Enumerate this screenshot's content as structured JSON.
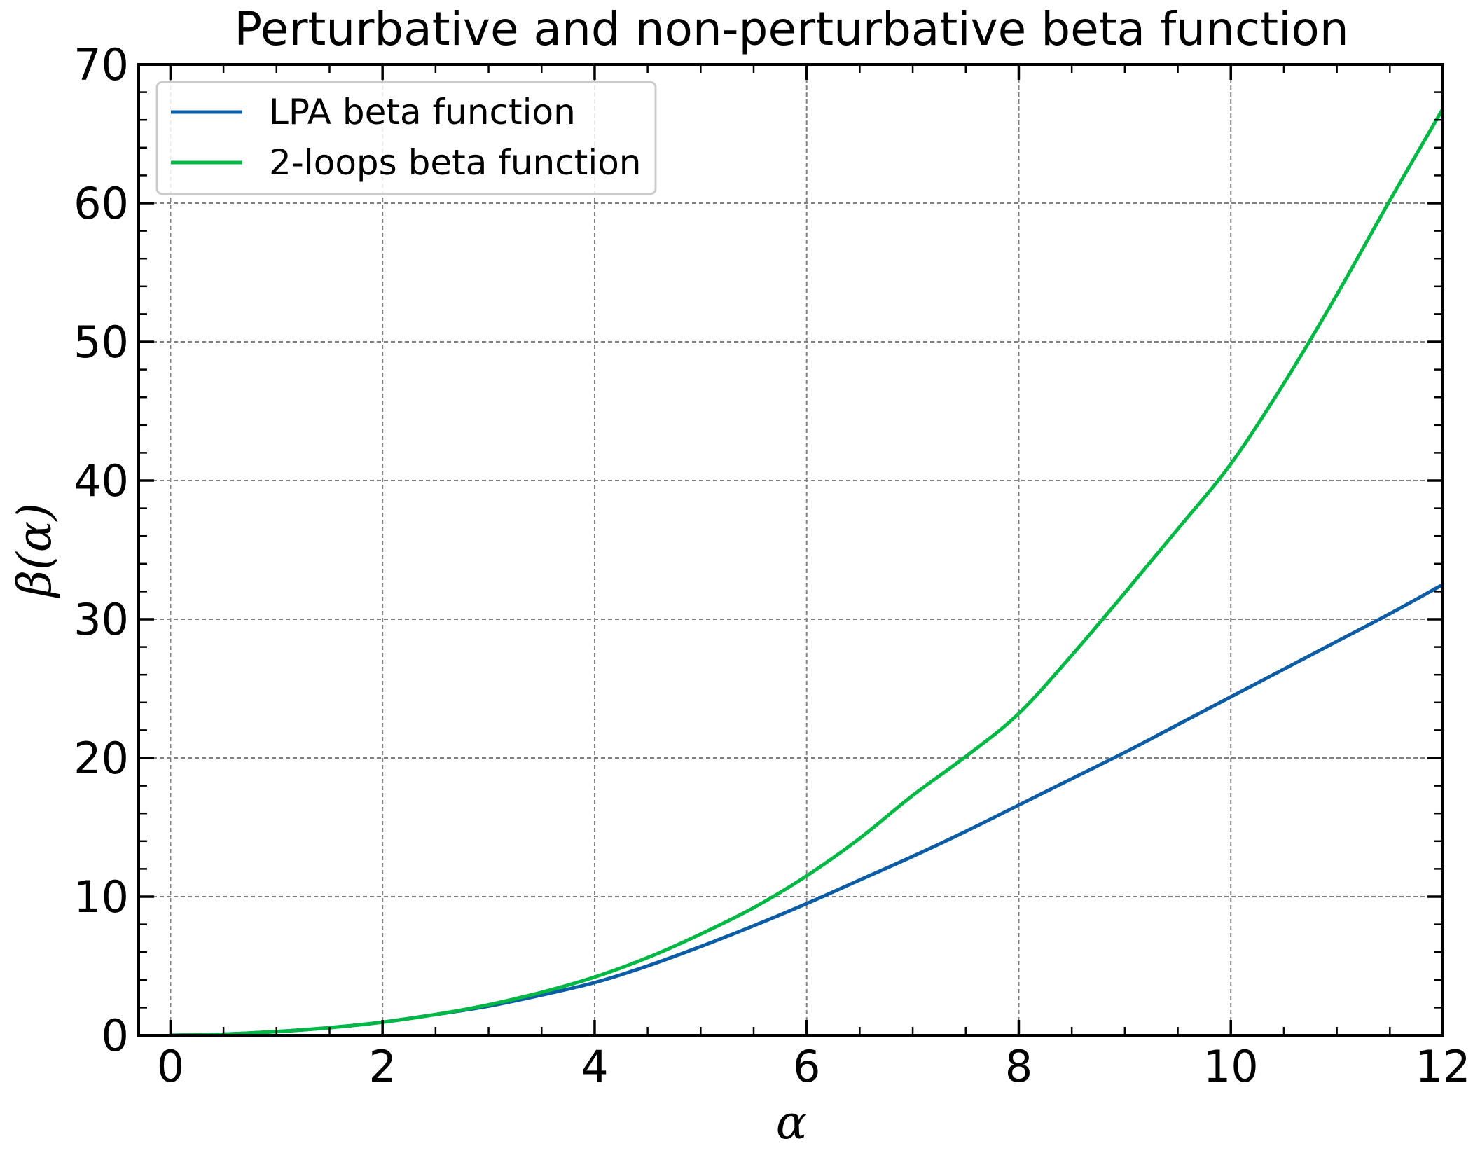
{
  "chart_data": {
    "type": "line",
    "title": "Perturbative and non-perturbative beta function",
    "xlabel": "α",
    "ylabel": "β(α)",
    "xlim": [
      -0.3,
      12
    ],
    "ylim": [
      0,
      70
    ],
    "x_ticks": [
      0,
      2,
      4,
      6,
      8,
      10,
      12
    ],
    "y_ticks": [
      0,
      10,
      20,
      30,
      40,
      50,
      60,
      70
    ],
    "grid": true,
    "legend_position": "top-left",
    "series": [
      {
        "name": "LPA beta function",
        "color": "#0c5da5",
        "x": [
          0,
          0.5,
          1,
          1.5,
          2,
          2.5,
          3,
          3.5,
          4,
          4.5,
          5,
          5.5,
          6,
          6.5,
          7,
          7.5,
          8,
          8.5,
          9,
          9.5,
          10,
          10.5,
          11,
          11.5,
          12
        ],
        "y": [
          0,
          0.08,
          0.27,
          0.55,
          0.95,
          1.5,
          2.1,
          2.9,
          3.8,
          5.0,
          6.4,
          7.9,
          9.5,
          11.2,
          12.9,
          14.7,
          16.6,
          18.5,
          20.4,
          22.4,
          24.4,
          26.4,
          28.4,
          30.4,
          32.5
        ]
      },
      {
        "name": "2-loops beta function",
        "color": "#00b945",
        "x": [
          0,
          0.5,
          1,
          1.5,
          2,
          2.5,
          3,
          3.5,
          4,
          4.5,
          5,
          5.5,
          6,
          6.5,
          7,
          7.5,
          8,
          8.5,
          9,
          9.5,
          10,
          10.5,
          11,
          11.5,
          12
        ],
        "y": [
          0,
          0.08,
          0.27,
          0.55,
          0.95,
          1.5,
          2.2,
          3.1,
          4.2,
          5.6,
          7.3,
          9.2,
          11.5,
          14.2,
          17.3,
          20.1,
          23.2,
          27.4,
          31.9,
          36.5,
          41.2,
          47.0,
          53.4,
          60.2,
          66.8
        ]
      }
    ]
  }
}
